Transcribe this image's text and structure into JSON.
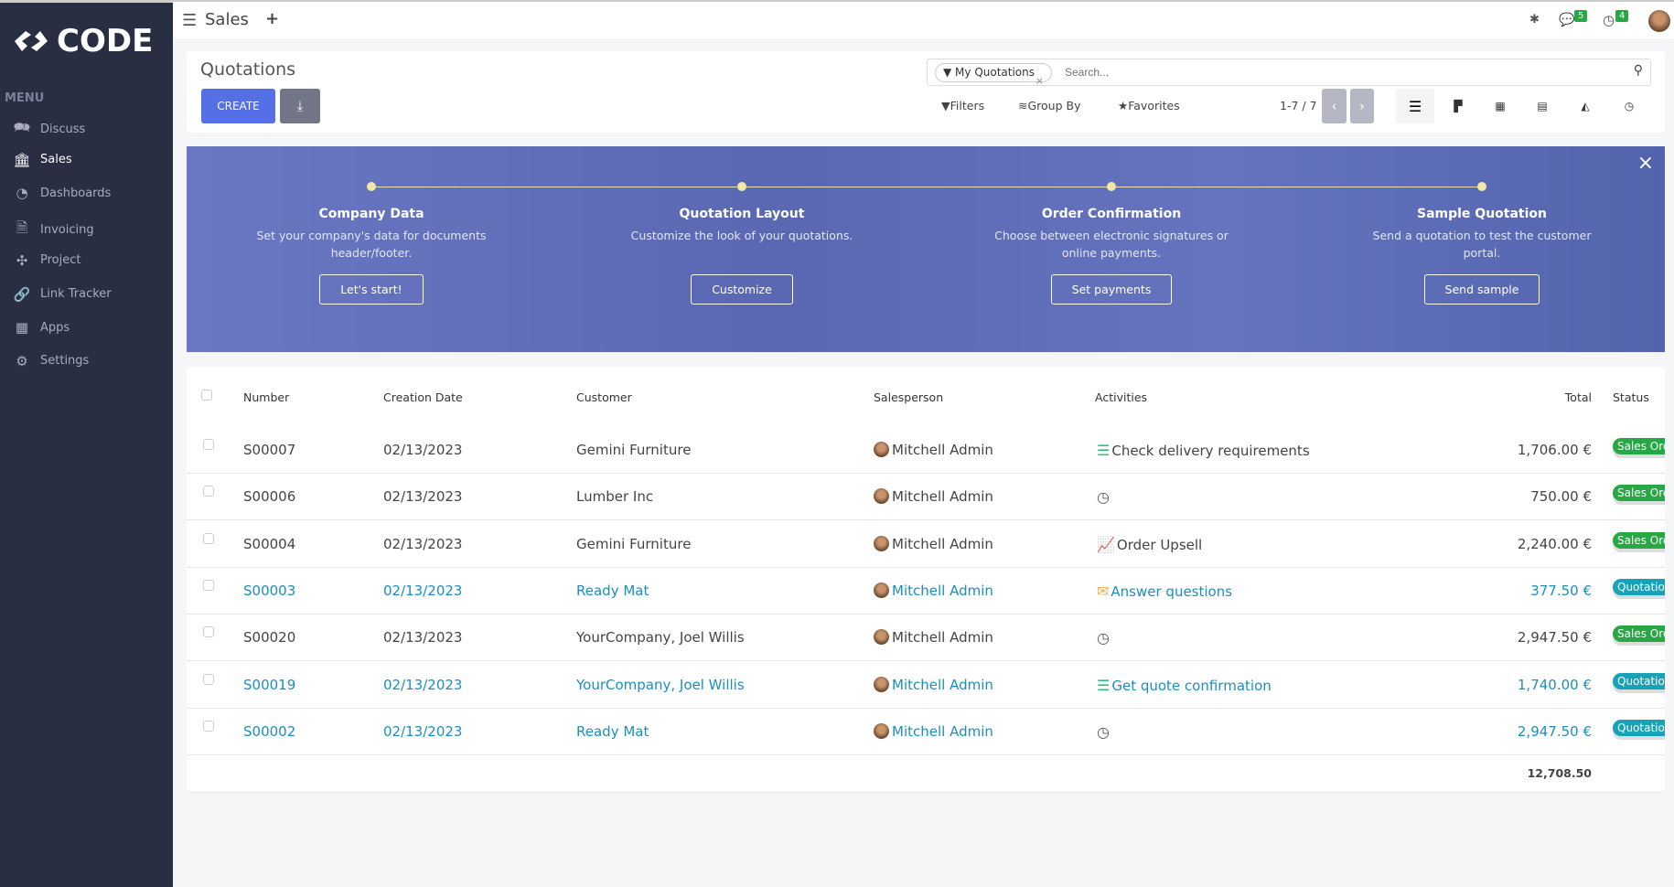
{
  "app": {
    "logo": "CODE",
    "menu_heading": "MENU"
  },
  "sidebar": {
    "items": [
      {
        "label": "Discuss",
        "icon": "chat-icon"
      },
      {
        "label": "Sales",
        "icon": "bank-icon",
        "active": true
      },
      {
        "label": "Dashboards",
        "icon": "gauge-icon"
      },
      {
        "label": "Invoicing",
        "icon": "invoice-icon"
      },
      {
        "label": "Project",
        "icon": "puzzle-icon"
      },
      {
        "label": "Link Tracker",
        "icon": "link-icon"
      },
      {
        "label": "Apps",
        "icon": "grid-icon"
      },
      {
        "label": "Settings",
        "icon": "gear-icon"
      }
    ]
  },
  "topbar": {
    "app_title": "Sales",
    "messages_count": "5",
    "activities_count": "4"
  },
  "control": {
    "title": "Quotations",
    "create_label": "CREATE",
    "facet": "My Quotations",
    "search_placeholder": "Search...",
    "filters": "Filters",
    "group_by": "Group By",
    "favorites": "Favorites",
    "pager": "1-7 / 7"
  },
  "banner": {
    "steps": [
      {
        "title": "Company Data",
        "desc": "Set your company's data for documents header/footer.",
        "button": "Let's start!"
      },
      {
        "title": "Quotation Layout",
        "desc": "Customize the look of your quotations.",
        "button": "Customize"
      },
      {
        "title": "Order Confirmation",
        "desc": "Choose between electronic signatures or online payments.",
        "button": "Set payments"
      },
      {
        "title": "Sample Quotation",
        "desc": "Send a quotation to test the customer portal.",
        "button": "Send sample"
      }
    ],
    "close": "×"
  },
  "table": {
    "headers": {
      "number": "Number",
      "date": "Creation Date",
      "customer": "Customer",
      "salesperson": "Salesperson",
      "activities": "Activities",
      "total": "Total",
      "status": "Status"
    },
    "rows": [
      {
        "number": "S00007",
        "date": "02/13/2023",
        "customer": "Gemini Furniture",
        "salesperson": "Mitchell Admin",
        "activity": "Check delivery requirements",
        "activity_icon": "tasks-icon",
        "total": "1,706.00 €",
        "status": "Sales Order",
        "highlight": false
      },
      {
        "number": "S00006",
        "date": "02/13/2023",
        "customer": "Lumber Inc",
        "salesperson": "Mitchell Admin",
        "activity": "",
        "activity_icon": "clock-icon",
        "total": "750.00 €",
        "status": "Sales Order",
        "highlight": false
      },
      {
        "number": "S00004",
        "date": "02/13/2023",
        "customer": "Gemini Furniture",
        "salesperson": "Mitchell Admin",
        "activity": "Order Upsell",
        "activity_icon": "chart-line-icon",
        "total": "2,240.00 €",
        "status": "Sales Order",
        "highlight": false
      },
      {
        "number": "S00003",
        "date": "02/13/2023",
        "customer": "Ready Mat",
        "salesperson": "Mitchell Admin",
        "activity": "Answer questions",
        "activity_icon": "envelope-icon",
        "total": "377.50 €",
        "status": "Quotation",
        "highlight": true
      },
      {
        "number": "S00020",
        "date": "02/13/2023",
        "customer": "YourCompany, Joel Willis",
        "salesperson": "Mitchell Admin",
        "activity": "",
        "activity_icon": "clock-icon",
        "total": "2,947.50 €",
        "status": "Sales Order",
        "highlight": false
      },
      {
        "number": "S00019",
        "date": "02/13/2023",
        "customer": "YourCompany, Joel Willis",
        "salesperson": "Mitchell Admin",
        "activity": "Get quote confirmation",
        "activity_icon": "tasks-icon",
        "total": "1,740.00 €",
        "status": "Quotation",
        "highlight": true
      },
      {
        "number": "S00002",
        "date": "02/13/2023",
        "customer": "Ready Mat",
        "salesperson": "Mitchell Admin",
        "activity": "",
        "activity_icon": "clock-icon",
        "total": "2,947.50 €",
        "status": "Quotation",
        "highlight": true
      }
    ],
    "grand_total": "12,708.50"
  },
  "colors": {
    "sidebar": "#292e42",
    "primary": "#5570e6",
    "sales_order": "#28a745",
    "quotation": "#17a2b8",
    "link": "#1a8fbf"
  }
}
